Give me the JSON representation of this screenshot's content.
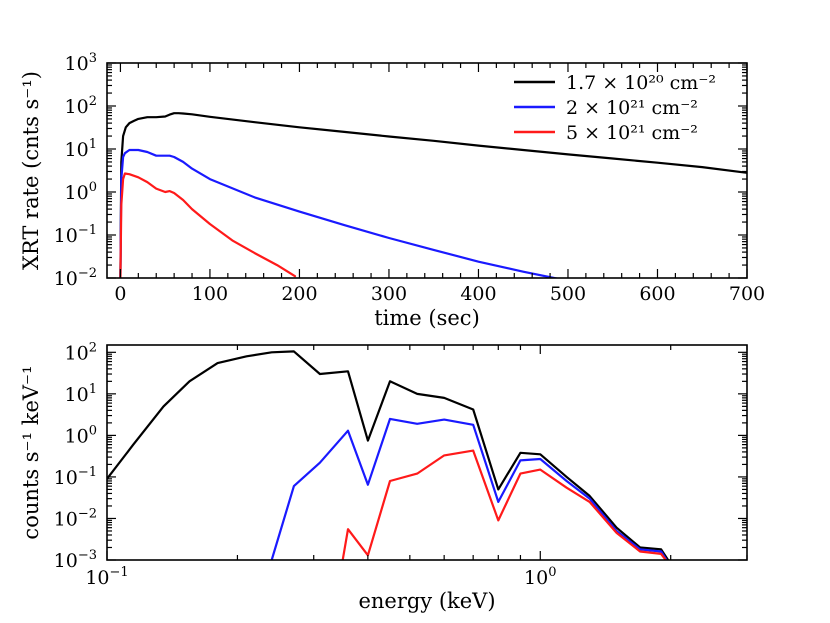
{
  "chart_data": [
    {
      "type": "line",
      "xlabel": "time (sec)",
      "ylabel": "XRT rate (cnts s⁻¹)",
      "xlim": [
        -15,
        700
      ],
      "ylim": [
        0.01,
        1000
      ],
      "yscale": "log",
      "x_ticks": [
        0,
        100,
        200,
        300,
        400,
        500,
        600,
        700
      ],
      "x_tick_labels": [
        "0",
        "100",
        "200",
        "300",
        "400",
        "500",
        "600",
        "700"
      ],
      "y_ticks": [
        0.01,
        0.1,
        1,
        10,
        100,
        1000
      ],
      "y_tick_labels": [
        {
          "base": "10",
          "exp": "−2"
        },
        {
          "base": "10",
          "exp": "−1"
        },
        {
          "base": "10",
          "exp": "0"
        },
        {
          "base": "10",
          "exp": "1"
        },
        {
          "base": "10",
          "exp": "2"
        },
        {
          "base": "10",
          "exp": "3"
        }
      ],
      "legend_position": "top-right",
      "series": [
        {
          "name": "1.7 × 10²⁰ cm⁻²",
          "color": "#000000",
          "x": [
            0,
            1,
            3,
            6,
            10,
            15,
            20,
            30,
            40,
            50,
            55,
            60,
            65,
            70,
            80,
            100,
            150,
            200,
            250,
            300,
            350,
            400,
            450,
            500,
            550,
            600,
            650,
            700
          ],
          "y": [
            0.01,
            5,
            20,
            32,
            40,
            45,
            50,
            55,
            55,
            57,
            63,
            68,
            68,
            67,
            64,
            56,
            42,
            32,
            25,
            19.5,
            15.5,
            12,
            9.5,
            7.5,
            6,
            4.8,
            3.8,
            2.8
          ]
        },
        {
          "name": "2 × 10²¹ cm⁻²",
          "color": "#1a1aff",
          "x": [
            0,
            1,
            3,
            5,
            10,
            20,
            30,
            40,
            50,
            55,
            60,
            70,
            80,
            100,
            150,
            200,
            250,
            300,
            350,
            400,
            450,
            490
          ],
          "y": [
            0.01,
            2,
            6.5,
            8,
            9.5,
            9.5,
            8.5,
            7,
            7,
            7,
            6.5,
            5,
            3.5,
            2,
            0.75,
            0.35,
            0.17,
            0.085,
            0.045,
            0.024,
            0.014,
            0.0095
          ]
        },
        {
          "name": "5 × 10²¹ cm⁻²",
          "color": "#ff1a1a",
          "x": [
            0,
            1,
            3,
            5,
            10,
            20,
            30,
            40,
            50,
            55,
            60,
            70,
            80,
            100,
            125,
            150,
            175,
            195
          ],
          "y": [
            0.01,
            0.5,
            2,
            2.7,
            2.6,
            2.2,
            1.7,
            1.2,
            1.0,
            1.05,
            0.95,
            0.65,
            0.4,
            0.18,
            0.075,
            0.038,
            0.02,
            0.011
          ]
        }
      ]
    },
    {
      "type": "line",
      "xlabel": "energy (keV)",
      "ylabel": "counts s⁻¹ keV⁻¹",
      "xscale": "log",
      "yscale": "log",
      "xlim": [
        0.1,
        3.0
      ],
      "ylim": [
        0.001,
        150
      ],
      "x_ticks": [
        0.1,
        1
      ],
      "x_tick_labels": [
        {
          "base": "10",
          "exp": "−1"
        },
        {
          "base": "10",
          "exp": "0"
        }
      ],
      "y_ticks": [
        0.001,
        0.01,
        0.1,
        1,
        10,
        100
      ],
      "y_tick_labels": [
        {
          "base": "10",
          "exp": "−3"
        },
        {
          "base": "10",
          "exp": "−2"
        },
        {
          "base": "10",
          "exp": "−1"
        },
        {
          "base": "10",
          "exp": "0"
        },
        {
          "base": "10",
          "exp": "1"
        },
        {
          "base": "10",
          "exp": "2"
        }
      ],
      "series": [
        {
          "name": "black",
          "color": "#000000",
          "x": [
            0.1,
            0.115,
            0.135,
            0.155,
            0.18,
            0.21,
            0.24,
            0.27,
            0.31,
            0.36,
            0.4,
            0.45,
            0.52,
            0.6,
            0.7,
            0.8,
            0.9,
            1.0,
            1.15,
            1.3,
            1.5,
            1.7,
            1.9,
            2.0
          ],
          "y": [
            0.09,
            0.6,
            5,
            20,
            55,
            80,
            100,
            105,
            30,
            35,
            0.75,
            20,
            10,
            8,
            4.2,
            0.05,
            0.38,
            0.35,
            0.1,
            0.035,
            0.006,
            0.002,
            0.0018,
            0.0008
          ]
        },
        {
          "name": "blue",
          "color": "#1a1aff",
          "x": [
            0.24,
            0.27,
            0.31,
            0.36,
            0.4,
            0.45,
            0.52,
            0.6,
            0.7,
            0.8,
            0.9,
            1.0,
            1.15,
            1.3,
            1.5,
            1.7,
            1.9,
            2.0
          ],
          "y": [
            0.001,
            0.06,
            0.22,
            1.3,
            0.065,
            2.5,
            1.9,
            2.4,
            1.8,
            0.025,
            0.25,
            0.27,
            0.08,
            0.03,
            0.005,
            0.0018,
            0.0016,
            0.0007
          ]
        },
        {
          "name": "red",
          "color": "#ff1a1a",
          "x": [
            0.35,
            0.36,
            0.4,
            0.45,
            0.52,
            0.6,
            0.7,
            0.8,
            0.9,
            1.0,
            1.15,
            1.3,
            1.5,
            1.7,
            1.9,
            2.0
          ],
          "y": [
            0.001,
            0.0055,
            0.0013,
            0.08,
            0.12,
            0.33,
            0.43,
            0.009,
            0.12,
            0.15,
            0.055,
            0.025,
            0.0045,
            0.0016,
            0.0014,
            0.0007
          ]
        }
      ]
    }
  ]
}
